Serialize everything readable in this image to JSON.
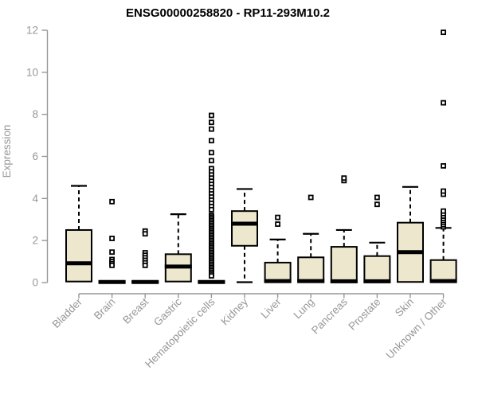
{
  "chart_data": {
    "type": "boxplot",
    "title": "ENSG00000258820 - RP11-293M10.2",
    "ylabel": "Expression",
    "xlabel": "",
    "ylim": [
      0,
      12
    ],
    "yticks": [
      0,
      2,
      4,
      6,
      8,
      10,
      12
    ],
    "grid": false,
    "legend": false,
    "categories": [
      "Bladder",
      "Brain",
      "Breast",
      "Gastric",
      "Hematopoietic cells",
      "Kidney",
      "Liver",
      "Lung",
      "Pancreas",
      "Prostate",
      "Skin",
      "Unknown / Other"
    ],
    "series": [
      {
        "category": "Bladder",
        "q1": 0.05,
        "median": 0.92,
        "q3": 2.5,
        "whisker_low": 0.05,
        "whisker_high": 4.6,
        "outliers": []
      },
      {
        "category": "Brain",
        "q1": 0.0,
        "median": 0.03,
        "q3": 0.06,
        "whisker_low": 0.0,
        "whisker_high": 0.06,
        "outliers": [
          3.85,
          2.1,
          1.45,
          1.1,
          1.0,
          0.9,
          0.82
        ]
      },
      {
        "category": "Breast",
        "q1": 0.0,
        "median": 0.03,
        "q3": 0.06,
        "whisker_low": 0.0,
        "whisker_high": 0.06,
        "outliers": [
          2.45,
          2.32,
          1.42,
          1.3,
          1.18,
          1.06,
          0.94,
          0.82
        ]
      },
      {
        "category": "Gastric",
        "q1": 0.05,
        "median": 0.76,
        "q3": 1.35,
        "whisker_low": 0.05,
        "whisker_high": 3.25,
        "outliers": []
      },
      {
        "category": "Hematopoietic cells",
        "q1": 0.0,
        "median": 0.03,
        "q3": 0.06,
        "whisker_low": 0.0,
        "whisker_high": 0.06,
        "outliers": [
          7.95,
          7.62,
          7.3,
          6.75,
          6.18,
          5.8,
          5.42,
          5.27,
          5.12,
          4.97,
          4.82,
          4.67,
          4.52,
          4.37,
          4.22,
          4.07,
          3.92,
          3.77,
          3.62,
          3.47,
          3.2,
          3.12,
          3.04,
          2.96,
          2.88,
          2.8,
          2.72,
          2.64,
          2.56,
          2.48,
          2.4,
          2.32,
          2.24,
          2.16,
          2.08,
          2.0,
          1.92,
          1.84,
          1.76,
          1.68,
          1.6,
          1.52,
          1.44,
          1.36,
          1.28,
          1.2,
          1.12,
          1.04,
          0.96,
          0.88,
          0.8,
          0.72,
          0.64,
          0.56,
          0.48,
          0.4,
          0.32
        ]
      },
      {
        "category": "Kidney",
        "q1": 1.75,
        "median": 2.8,
        "q3": 3.4,
        "whisker_low": 0.02,
        "whisker_high": 4.45,
        "outliers": []
      },
      {
        "category": "Liver",
        "q1": 0.02,
        "median": 0.07,
        "q3": 0.95,
        "whisker_low": 0.02,
        "whisker_high": 2.05,
        "outliers": [
          2.78,
          3.1
        ]
      },
      {
        "category": "Lung",
        "q1": 0.02,
        "median": 0.07,
        "q3": 1.2,
        "whisker_low": 0.02,
        "whisker_high": 2.32,
        "outliers": [
          4.05
        ]
      },
      {
        "category": "Pancreas",
        "q1": 0.02,
        "median": 0.06,
        "q3": 1.7,
        "whisker_low": 0.02,
        "whisker_high": 2.5,
        "outliers": [
          4.85,
          4.97
        ]
      },
      {
        "category": "Prostate",
        "q1": 0.02,
        "median": 0.06,
        "q3": 1.26,
        "whisker_low": 0.02,
        "whisker_high": 1.9,
        "outliers": [
          3.72,
          4.05
        ]
      },
      {
        "category": "Skin",
        "q1": 0.03,
        "median": 1.45,
        "q3": 2.85,
        "whisker_low": 0.03,
        "whisker_high": 4.55,
        "outliers": []
      },
      {
        "category": "Unknown / Other",
        "q1": 0.02,
        "median": 0.07,
        "q3": 1.07,
        "whisker_low": 0.02,
        "whisker_high": 2.6,
        "outliers": [
          2.65,
          2.75,
          2.85,
          2.95,
          3.05,
          3.16,
          3.28,
          3.4,
          4.2,
          4.35,
          5.55,
          8.55,
          11.9
        ]
      }
    ],
    "colors": {
      "box_fill": "#EDE8CD",
      "box_border": "#000000",
      "median": "#000000",
      "whisker": "#000000",
      "outlier_border": "#000000",
      "outlier_fill": "#ffffff",
      "axis": "#979797",
      "tick_label": "#979797",
      "title": "#000000",
      "background": "#ffffff"
    }
  }
}
